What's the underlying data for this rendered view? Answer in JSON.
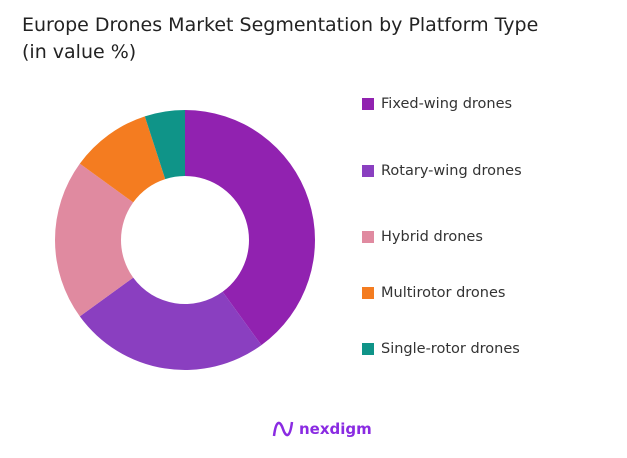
{
  "chart_data": {
    "type": "pie",
    "donut": true,
    "title": "Europe Drones Market Segmentation by Platform Type",
    "subtitle": "(in value %)",
    "categories": [
      "Fixed-wing drones",
      "Rotary-wing drones",
      "Hybrid drones",
      "Multirotor drones",
      "Single-rotor drones"
    ],
    "values": [
      40,
      25,
      20,
      10,
      5
    ],
    "unit": "%",
    "colors": [
      "#9122b0",
      "#8a3fc0",
      "#e08aa0",
      "#f47c20",
      "#0f9488"
    ],
    "legend_position": "right"
  },
  "brand": {
    "logo_text": "nexdigm"
  }
}
